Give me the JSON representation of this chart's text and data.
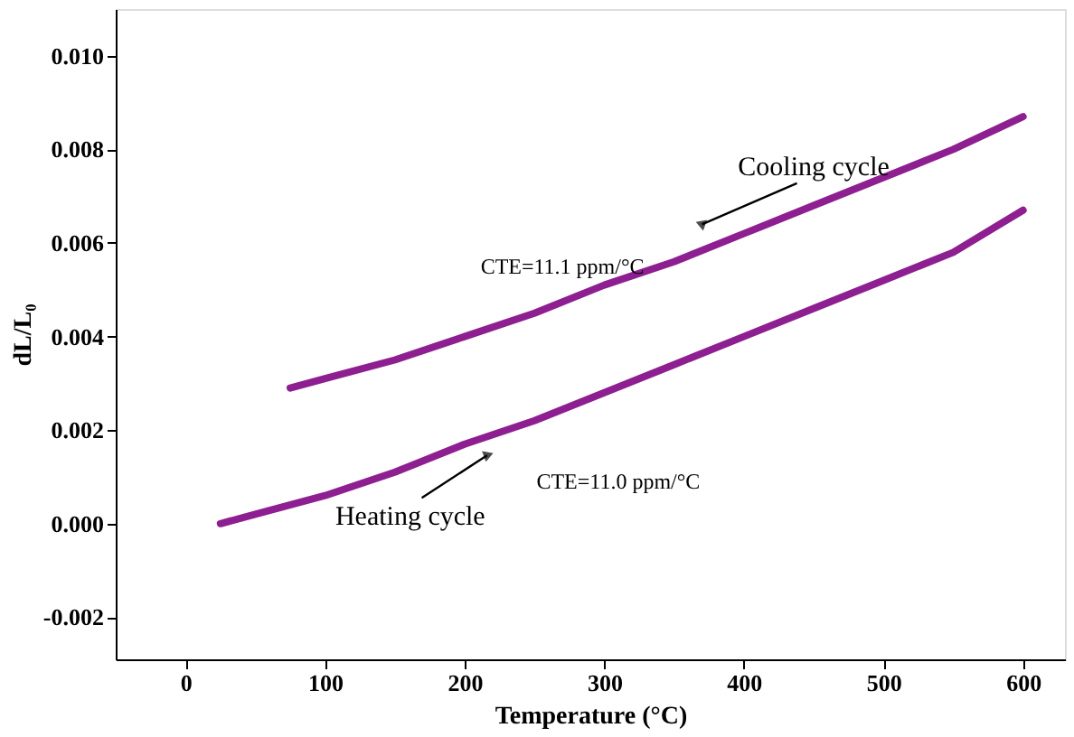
{
  "chart_data": {
    "type": "line",
    "xlabel": "Temperature (°C)",
    "ylabel": "dL/L₀",
    "xlim": [
      -50,
      630
    ],
    "xticks": [
      0,
      100,
      200,
      300,
      400,
      500,
      600
    ],
    "ylim": [
      -0.0029,
      0.011
    ],
    "yticks": [
      {
        "value": -0.002,
        "label": "-0.002"
      },
      {
        "value": 0,
        "label": "0.000"
      },
      {
        "value": 0.002,
        "label": "0.002"
      },
      {
        "value": 0.004,
        "label": "0.004"
      },
      {
        "value": 0.006,
        "label": "0.006"
      },
      {
        "value": 0.008,
        "label": "0.008"
      },
      {
        "value": 0.01,
        "label": "0.010"
      }
    ],
    "grid": false,
    "marker": "none",
    "line_style": "solid",
    "series": [
      {
        "color": "#8e1f91",
        "x": [
          75,
          100,
          150,
          200,
          250,
          300,
          350,
          400,
          450,
          500,
          550,
          600
        ],
        "values": [
          0.0029,
          0.0031,
          0.0035,
          0.004,
          0.0045,
          0.0051,
          0.0056,
          0.0062,
          0.0068,
          0.0074,
          0.008,
          0.0087
        ]
      },
      {
        "color": "#8e1f91",
        "x": [
          25,
          50,
          100,
          150,
          200,
          250,
          300,
          350,
          400,
          450,
          500,
          550,
          600
        ],
        "values": [
          0.0,
          0.0002,
          0.0006,
          0.0011,
          0.0017,
          0.0022,
          0.0028,
          0.0034,
          0.004,
          0.0046,
          0.0052,
          0.0058,
          0.0067
        ]
      }
    ],
    "annotations": [
      {
        "text": "Cooling cycle",
        "x": 370,
        "y": 0.0064
      },
      "CTE=11.1 ppm/°C",
      "CTE=11.0 ppm/°C",
      {
        "text": "Heating cycle",
        "x": 216,
        "y": 0.00146
      }
    ]
  }
}
